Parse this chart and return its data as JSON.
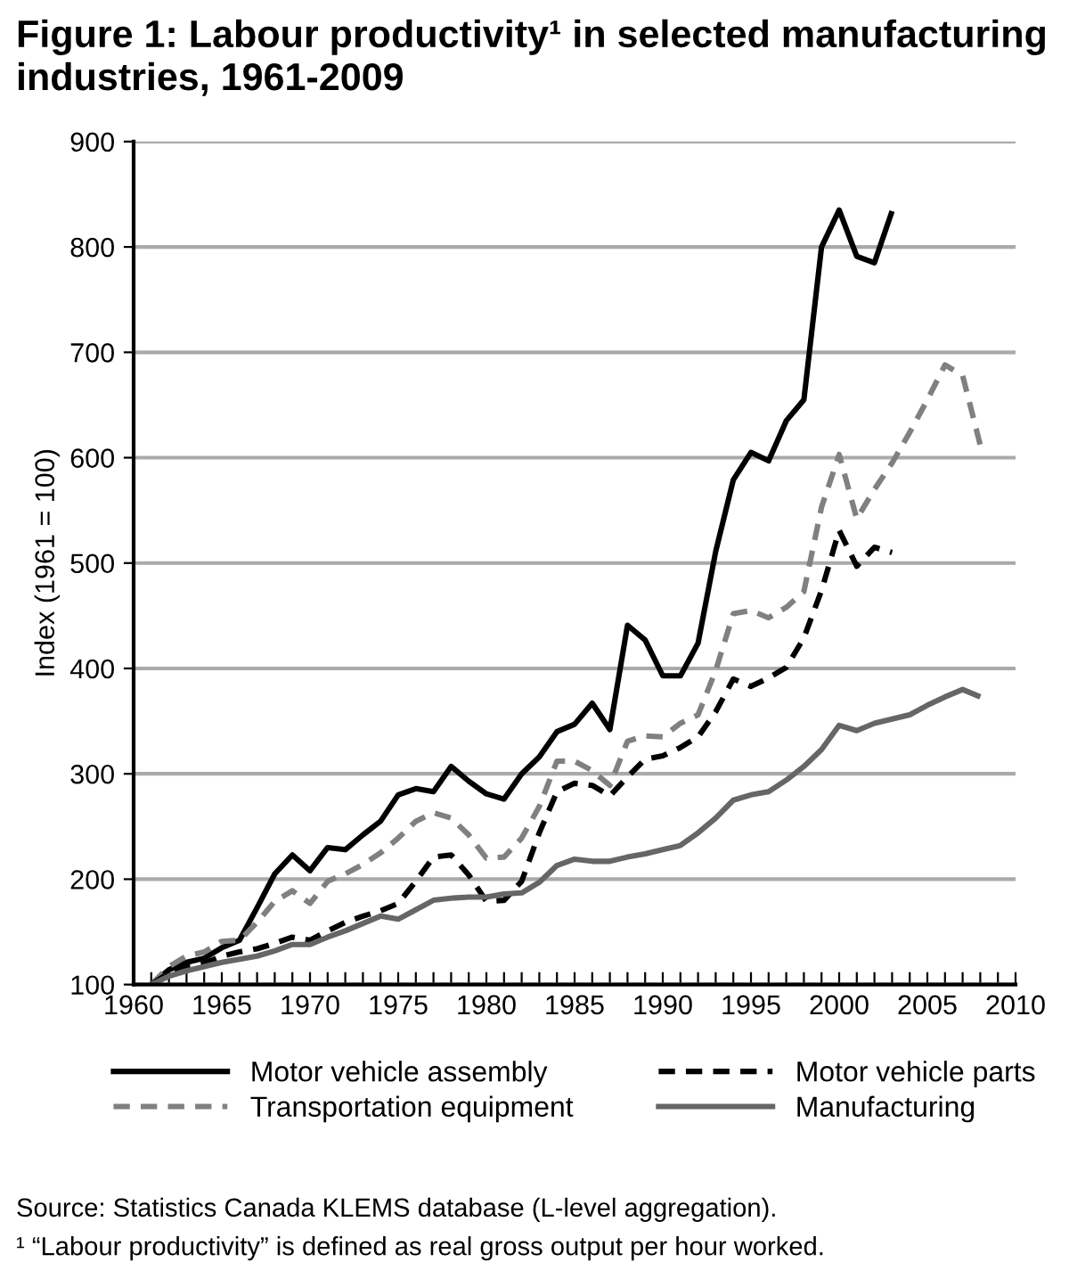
{
  "chart_data": {
    "type": "line",
    "title": "Figure 1: Labour productivity¹ in selected manufacturing industries, 1961-2009",
    "ylabel": "Index (1961 = 100)",
    "x": [
      1961,
      1962,
      1963,
      1964,
      1965,
      1966,
      1967,
      1968,
      1969,
      1970,
      1971,
      1972,
      1973,
      1974,
      1975,
      1976,
      1977,
      1978,
      1979,
      1980,
      1981,
      1982,
      1983,
      1984,
      1985,
      1986,
      1987,
      1988,
      1989,
      1990,
      1991,
      1992,
      1993,
      1994,
      1995,
      1996,
      1997,
      1998,
      1999,
      2000,
      2001,
      2002,
      2003,
      2004,
      2005,
      2006,
      2007,
      2008
    ],
    "series": [
      {
        "name": "Motor vehicle assembly",
        "color": "#000000",
        "line_style": "solid",
        "values": [
          100,
          114,
          121,
          125,
          135,
          142,
          173,
          205,
          223,
          208,
          230,
          228,
          242,
          255,
          280,
          286,
          283,
          307,
          293,
          281,
          276,
          300,
          316,
          340,
          347,
          367,
          342,
          441,
          427,
          393,
          393,
          424,
          511,
          579,
          605,
          597,
          635,
          655,
          800,
          835,
          791,
          785,
          834,
          null,
          null,
          null,
          null,
          null
        ]
      },
      {
        "name": "Transportation equipment",
        "color": "#808080",
        "line_style": "dashed",
        "values": [
          100,
          117,
          127,
          131,
          141,
          142,
          159,
          179,
          189,
          177,
          198,
          205,
          214,
          225,
          239,
          255,
          263,
          258,
          242,
          220,
          221,
          239,
          269,
          312,
          312,
          303,
          289,
          331,
          336,
          335,
          348,
          356,
          398,
          452,
          455,
          448,
          458,
          473,
          553,
          603,
          542,
          570,
          595,
          624,
          655,
          688,
          678,
          612
        ]
      },
      {
        "name": "Motor vehicle parts",
        "color": "#000000",
        "line_style": "dashed",
        "values": [
          100,
          111,
          117,
          120,
          127,
          131,
          134,
          139,
          145,
          142,
          151,
          159,
          165,
          170,
          177,
          198,
          221,
          223,
          204,
          179,
          180,
          198,
          244,
          283,
          291,
          289,
          279,
          297,
          314,
          317,
          325,
          335,
          359,
          390,
          383,
          391,
          401,
          429,
          474,
          531,
          497,
          515,
          510,
          null,
          null,
          null,
          null,
          null
        ]
      },
      {
        "name": "Manufacturing",
        "color": "#666666",
        "line_style": "solid",
        "values": [
          100,
          108,
          113,
          117,
          121,
          124,
          127,
          132,
          138,
          138,
          145,
          151,
          158,
          165,
          162,
          171,
          180,
          182,
          183,
          183,
          186,
          187,
          197,
          213,
          219,
          217,
          217,
          221,
          224,
          228,
          232,
          244,
          258,
          275,
          280,
          283,
          294,
          307,
          323,
          346,
          341,
          348,
          352,
          356,
          365,
          373,
          380,
          373
        ]
      }
    ],
    "xlim": [
      1960,
      2010
    ],
    "xticks": [
      1960,
      {
        "value": 1961,
        "label": null
      },
      {
        "value": 1962,
        "label": null
      },
      {
        "value": 1963,
        "label": null
      },
      {
        "value": 1964,
        "label": null
      },
      1965,
      {
        "value": 1966,
        "label": null
      },
      {
        "value": 1967,
        "label": null
      },
      {
        "value": 1968,
        "label": null
      },
      {
        "value": 1969,
        "label": null
      },
      1970,
      {
        "value": 1971,
        "label": null
      },
      {
        "value": 1972,
        "label": null
      },
      {
        "value": 1973,
        "label": null
      },
      {
        "value": 1974,
        "label": null
      },
      1975,
      {
        "value": 1976,
        "label": null
      },
      {
        "value": 1977,
        "label": null
      },
      {
        "value": 1978,
        "label": null
      },
      {
        "value": 1979,
        "label": null
      },
      1980,
      {
        "value": 1981,
        "label": null
      },
      {
        "value": 1982,
        "label": null
      },
      {
        "value": 1983,
        "label": null
      },
      {
        "value": 1984,
        "label": null
      },
      1985,
      {
        "value": 1986,
        "label": null
      },
      {
        "value": 1987,
        "label": null
      },
      {
        "value": 1988,
        "label": null
      },
      {
        "value": 1989,
        "label": null
      },
      1990,
      {
        "value": 1991,
        "label": null
      },
      {
        "value": 1992,
        "label": null
      },
      {
        "value": 1993,
        "label": null
      },
      {
        "value": 1994,
        "label": null
      },
      1995,
      {
        "value": 1996,
        "label": null
      },
      {
        "value": 1997,
        "label": null
      },
      {
        "value": 1998,
        "label": null
      },
      {
        "value": 1999,
        "label": null
      },
      2000,
      {
        "value": 2001,
        "label": null
      },
      {
        "value": 2002,
        "label": null
      },
      {
        "value": 2003,
        "label": null
      },
      {
        "value": 2004,
        "label": null
      },
      2005,
      {
        "value": 2006,
        "label": null
      },
      {
        "value": 2007,
        "label": null
      },
      {
        "value": 2008,
        "label": null
      },
      {
        "value": 2009,
        "label": null
      },
      2010
    ],
    "ylim": [
      100,
      900
    ],
    "yticks": [
      100,
      200,
      300,
      400,
      500,
      600,
      700,
      800,
      900
    ],
    "grid": "y",
    "legend": "bottom",
    "marker": "none",
    "annotations": [
      "Source: Statistics Canada KLEMS database (L-level aggregation).",
      "¹ “Labour productivity” is defined as real gross output per hour worked."
    ]
  }
}
